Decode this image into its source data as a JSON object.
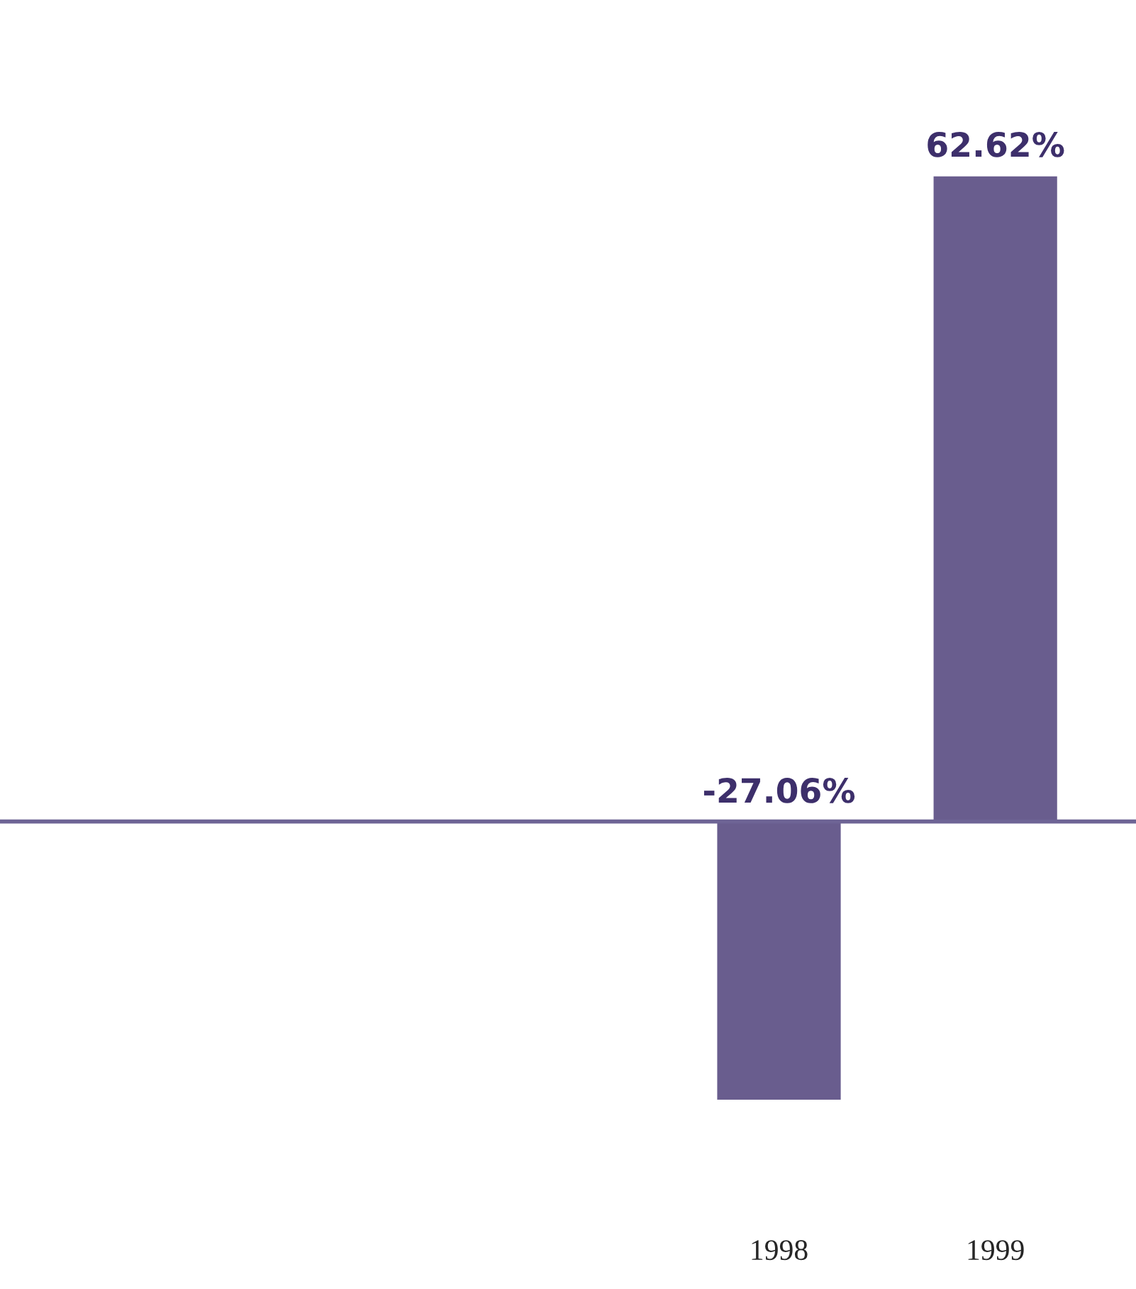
{
  "chart_data": {
    "type": "bar",
    "categories": [
      null,
      null,
      null,
      "1998",
      "1999"
    ],
    "values": [
      null,
      null,
      null,
      -27.06,
      62.62
    ],
    "value_labels": [
      null,
      null,
      null,
      "-27.06%",
      "62.62%"
    ],
    "color": "#695d8e",
    "ref_lines": [
      {
        "axis": "y",
        "value": 0,
        "color": "#6e6495"
      }
    ]
  }
}
